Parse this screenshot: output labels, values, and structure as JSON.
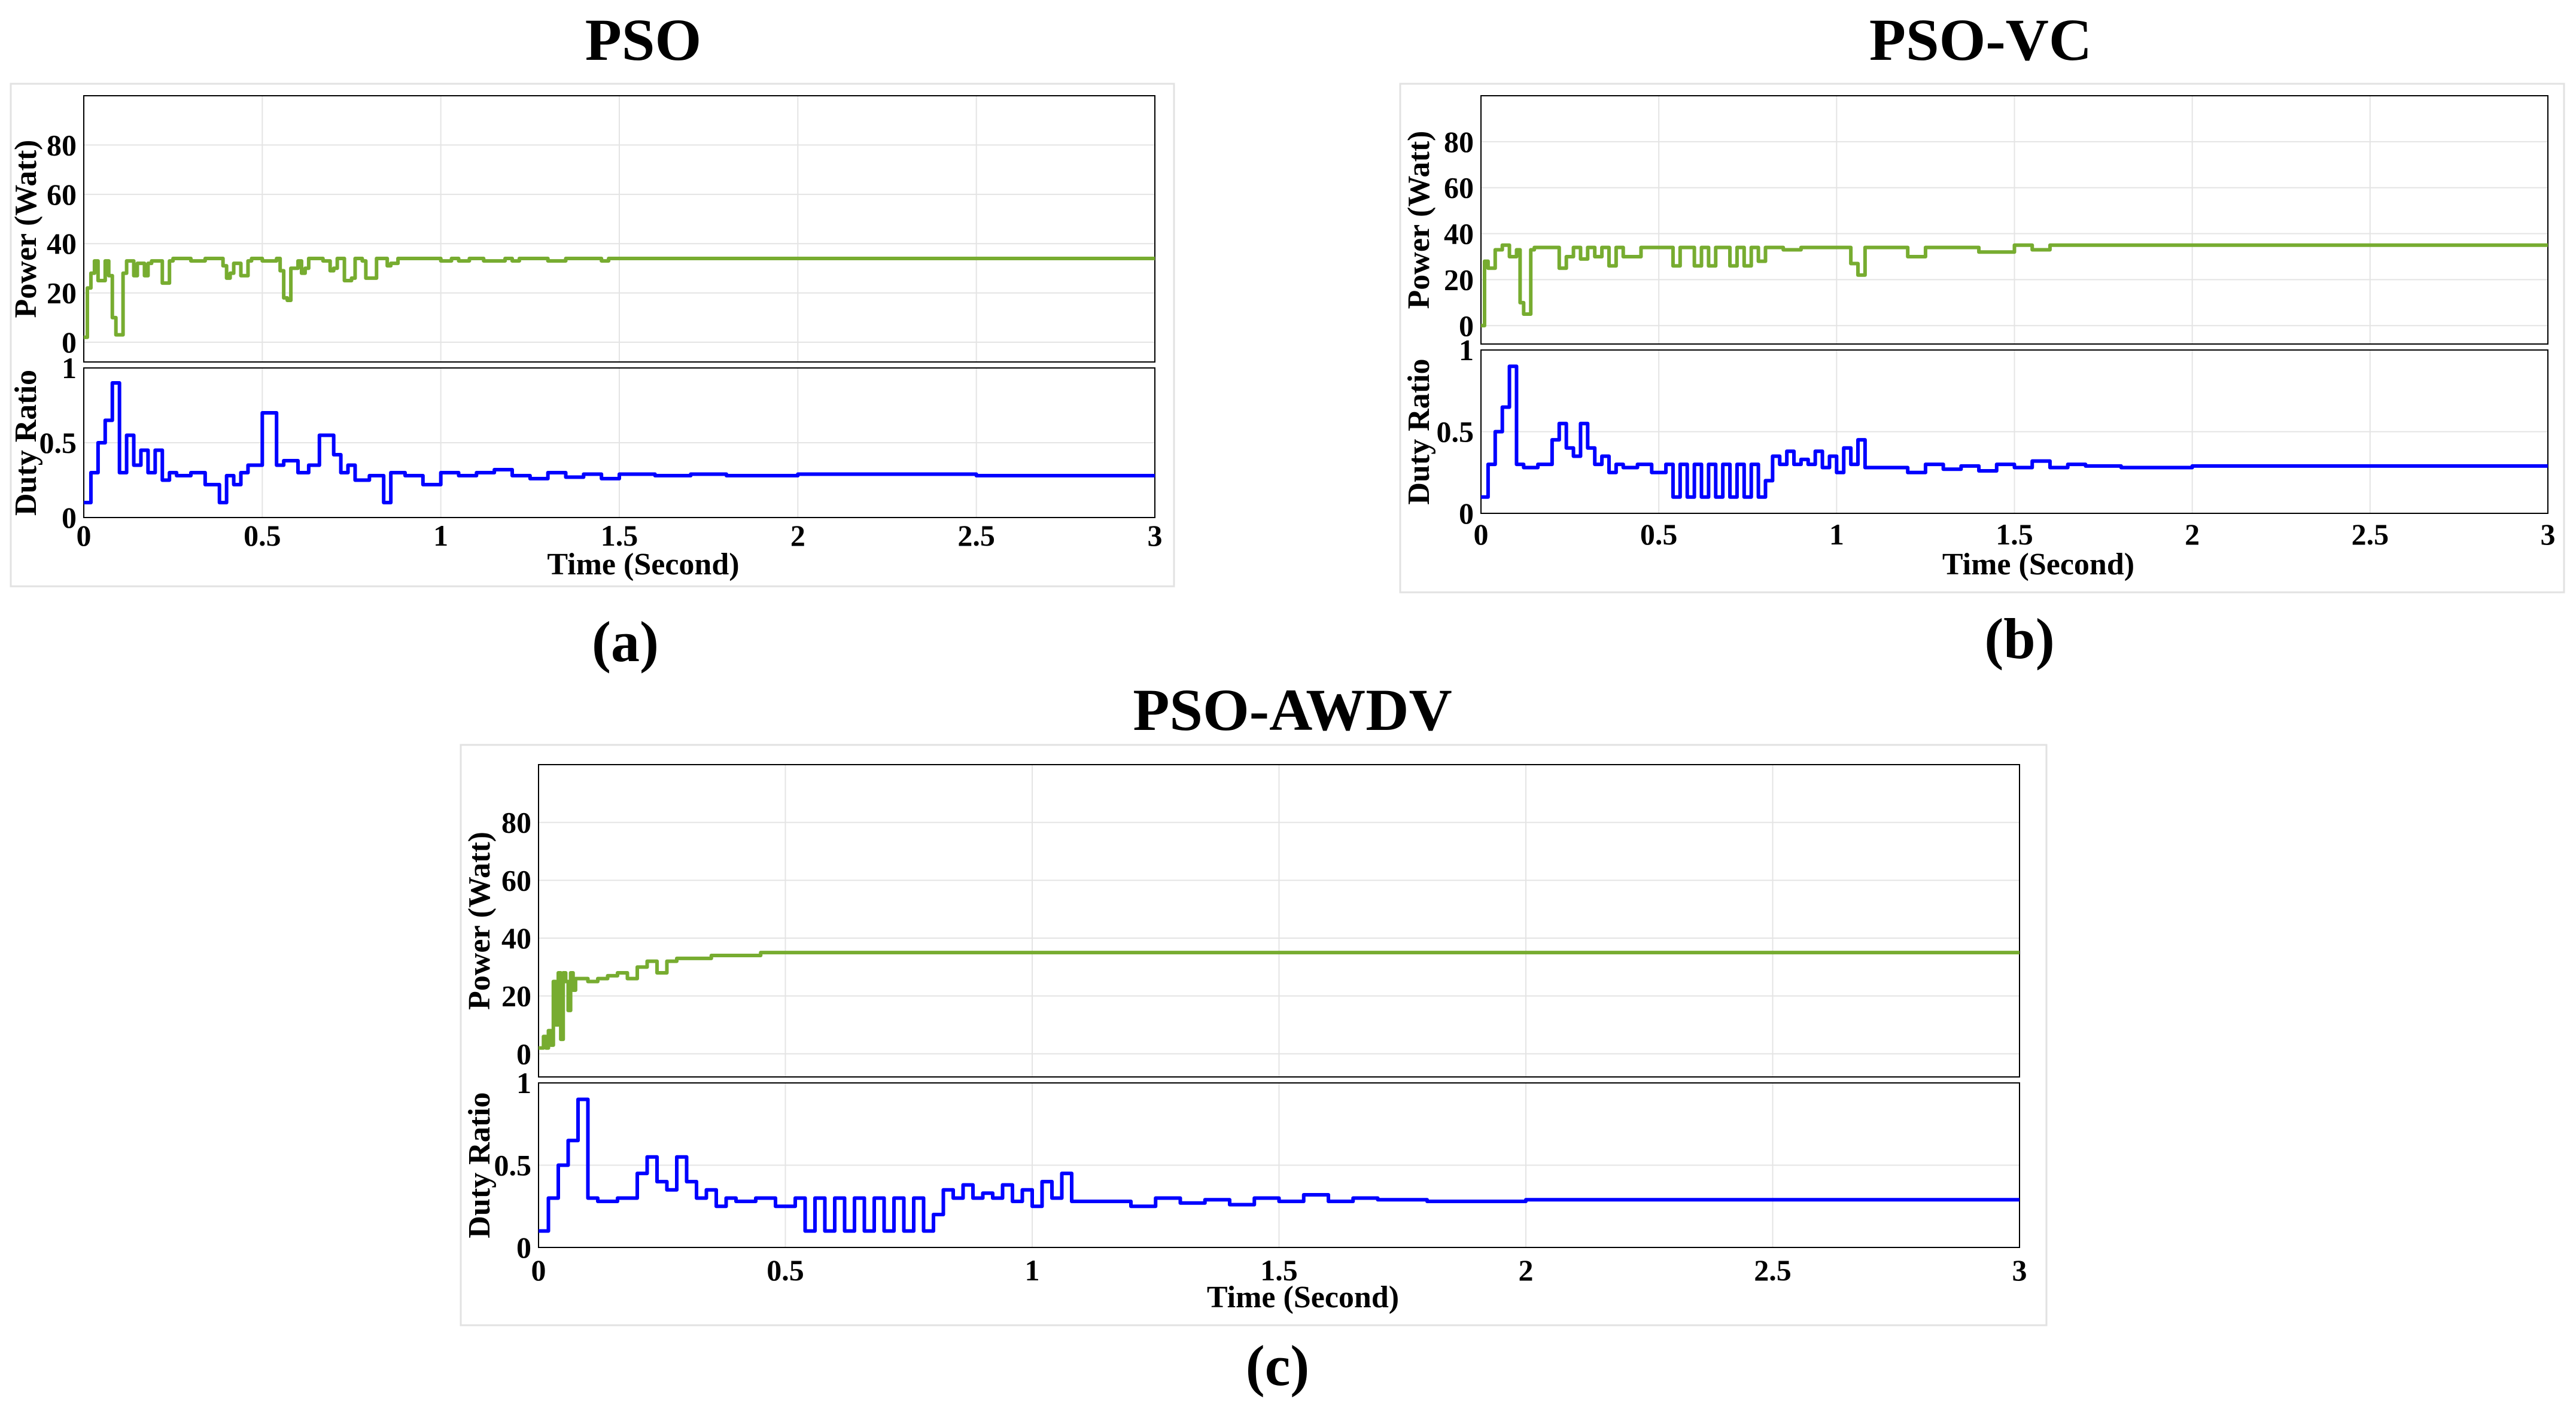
{
  "colors": {
    "power": "#77ac30",
    "duty": "#0000ff",
    "axis": "#000000",
    "grid": "#e4e4e4"
  },
  "captions": {
    "a": "(a)",
    "b": "(b)",
    "c": "(c)"
  },
  "chart_data": [
    {
      "id": "a",
      "title": "PSO",
      "type": "line",
      "xlabel": "Time (Second)",
      "xlim": [
        0,
        3
      ],
      "xticks": [
        "0",
        "0.5",
        "1",
        "1.5",
        "2",
        "2.5",
        "3"
      ],
      "subplots": [
        {
          "name": "power",
          "ylabel": "Power (Watt)",
          "ylim": [
            -8,
            100
          ],
          "yticks": [
            "0",
            "20",
            "40",
            "60",
            "80"
          ],
          "series": [
            {
              "name": "Power",
              "x": [
                0,
                0.01,
                0.02,
                0.03,
                0.04,
                0.06,
                0.07,
                0.08,
                0.09,
                0.1,
                0.11,
                0.12,
                0.13,
                0.14,
                0.15,
                0.16,
                0.17,
                0.18,
                0.19,
                0.21,
                0.22,
                0.23,
                0.24,
                0.25,
                0.27,
                0.3,
                0.34,
                0.37,
                0.39,
                0.4,
                0.41,
                0.42,
                0.44,
                0.46,
                0.47,
                0.48,
                0.5,
                0.54,
                0.55,
                0.56,
                0.57,
                0.58,
                0.6,
                0.61,
                0.62,
                0.63,
                0.65,
                0.67,
                0.69,
                0.7,
                0.71,
                0.72,
                0.73,
                0.75,
                0.76,
                0.77,
                0.78,
                0.79,
                0.8,
                0.82,
                0.84,
                0.85,
                0.86,
                0.88,
                0.95,
                1.0,
                1.03,
                1.05,
                1.08,
                1.12,
                1.18,
                1.2,
                1.22,
                1.3,
                1.35,
                1.45,
                1.47,
                1.5,
                1.6,
                2.0,
                2.5,
                3.0
              ],
              "y": [
                2,
                22,
                28,
                33,
                25,
                33,
                27,
                10,
                3,
                3,
                28,
                33,
                33,
                27,
                32,
                32,
                27,
                32,
                33,
                33,
                24,
                24,
                33,
                34,
                34,
                33,
                34,
                34,
                31,
                26,
                28,
                32,
                27,
                33,
                34,
                34,
                33,
                34,
                29,
                18,
                17,
                30,
                33,
                28,
                30,
                34,
                34,
                33,
                29,
                30,
                34,
                34,
                25,
                26,
                34,
                34,
                33,
                26,
                26,
                34,
                34,
                31,
                32,
                34,
                34,
                33,
                34,
                33,
                34,
                33,
                34,
                33,
                34,
                33,
                34,
                33,
                34,
                34,
                34,
                34,
                34,
                34
              ]
            }
          ]
        },
        {
          "name": "duty",
          "ylabel": "Duty Ratio",
          "ylim": [
            0,
            1
          ],
          "yticks": [
            "0",
            "0.5",
            "1"
          ],
          "series": [
            {
              "name": "Duty Ratio",
              "x": [
                0,
                0.02,
                0.04,
                0.06,
                0.08,
                0.1,
                0.12,
                0.14,
                0.16,
                0.18,
                0.2,
                0.22,
                0.24,
                0.26,
                0.3,
                0.34,
                0.38,
                0.4,
                0.42,
                0.44,
                0.46,
                0.5,
                0.54,
                0.56,
                0.6,
                0.63,
                0.66,
                0.7,
                0.72,
                0.74,
                0.76,
                0.8,
                0.84,
                0.86,
                0.9,
                0.95,
                1.0,
                1.05,
                1.1,
                1.15,
                1.2,
                1.25,
                1.3,
                1.35,
                1.4,
                1.45,
                1.5,
                1.6,
                1.7,
                1.8,
                2.0,
                2.5,
                3.0
              ],
              "y": [
                0.1,
                0.3,
                0.5,
                0.65,
                0.9,
                0.3,
                0.55,
                0.35,
                0.45,
                0.3,
                0.45,
                0.25,
                0.3,
                0.28,
                0.3,
                0.22,
                0.1,
                0.28,
                0.22,
                0.3,
                0.35,
                0.7,
                0.35,
                0.38,
                0.3,
                0.35,
                0.55,
                0.42,
                0.3,
                0.35,
                0.25,
                0.28,
                0.1,
                0.3,
                0.28,
                0.22,
                0.3,
                0.28,
                0.3,
                0.32,
                0.28,
                0.26,
                0.3,
                0.27,
                0.29,
                0.26,
                0.29,
                0.28,
                0.29,
                0.28,
                0.29,
                0.28,
                0.28
              ]
            }
          ]
        }
      ]
    },
    {
      "id": "b",
      "title": "PSO-VC",
      "type": "line",
      "xlabel": "Time (Second)",
      "xlim": [
        0,
        3
      ],
      "xticks": [
        "0",
        "0.5",
        "1",
        "1.5",
        "2",
        "2.5",
        "3"
      ],
      "subplots": [
        {
          "name": "power",
          "ylabel": "Power (Watt)",
          "ylim": [
            -8,
            100
          ],
          "yticks": [
            "0",
            "20",
            "40",
            "60",
            "80"
          ],
          "series": [
            {
              "name": "Power",
              "x": [
                0,
                0.01,
                0.02,
                0.04,
                0.06,
                0.08,
                0.1,
                0.11,
                0.12,
                0.13,
                0.14,
                0.15,
                0.2,
                0.22,
                0.24,
                0.26,
                0.28,
                0.3,
                0.32,
                0.34,
                0.36,
                0.38,
                0.4,
                0.45,
                0.5,
                0.54,
                0.56,
                0.6,
                0.62,
                0.64,
                0.66,
                0.7,
                0.72,
                0.74,
                0.76,
                0.78,
                0.8,
                0.85,
                0.9,
                1.0,
                1.04,
                1.06,
                1.08,
                1.1,
                1.2,
                1.25,
                1.3,
                1.4,
                1.5,
                1.55,
                1.6,
                1.7,
                2.0,
                2.5,
                3.0
              ],
              "y": [
                0,
                28,
                25,
                33,
                35,
                30,
                33,
                10,
                5,
                5,
                33,
                34,
                34,
                25,
                30,
                34,
                29,
                34,
                30,
                34,
                26,
                34,
                30,
                34,
                34,
                26,
                34,
                26,
                34,
                26,
                34,
                26,
                34,
                26,
                34,
                28,
                34,
                33,
                34,
                34,
                27,
                22,
                34,
                34,
                30,
                34,
                34,
                32,
                35,
                33,
                35,
                35,
                35,
                35,
                35
              ]
            }
          ]
        },
        {
          "name": "duty",
          "ylabel": "Duty Ratio",
          "ylim": [
            0,
            1
          ],
          "yticks": [
            "0",
            "0.5",
            "1"
          ],
          "series": [
            {
              "name": "Duty Ratio",
              "x": [
                0,
                0.02,
                0.04,
                0.06,
                0.08,
                0.1,
                0.12,
                0.16,
                0.2,
                0.22,
                0.24,
                0.26,
                0.28,
                0.3,
                0.32,
                0.34,
                0.36,
                0.38,
                0.4,
                0.44,
                0.48,
                0.52,
                0.54,
                0.56,
                0.58,
                0.6,
                0.62,
                0.64,
                0.66,
                0.68,
                0.7,
                0.72,
                0.74,
                0.76,
                0.78,
                0.8,
                0.82,
                0.84,
                0.86,
                0.88,
                0.9,
                0.92,
                0.94,
                0.96,
                0.98,
                1.0,
                1.02,
                1.04,
                1.06,
                1.08,
                1.1,
                1.2,
                1.25,
                1.3,
                1.35,
                1.4,
                1.45,
                1.5,
                1.55,
                1.6,
                1.65,
                1.7,
                1.8,
                2.0,
                2.5,
                3.0
              ],
              "y": [
                0.1,
                0.3,
                0.5,
                0.65,
                0.9,
                0.3,
                0.28,
                0.3,
                0.45,
                0.55,
                0.4,
                0.35,
                0.55,
                0.4,
                0.3,
                0.35,
                0.25,
                0.3,
                0.28,
                0.3,
                0.25,
                0.3,
                0.1,
                0.3,
                0.1,
                0.3,
                0.1,
                0.3,
                0.1,
                0.3,
                0.1,
                0.3,
                0.1,
                0.3,
                0.1,
                0.2,
                0.35,
                0.3,
                0.38,
                0.3,
                0.33,
                0.3,
                0.38,
                0.28,
                0.35,
                0.25,
                0.4,
                0.3,
                0.45,
                0.28,
                0.28,
                0.25,
                0.3,
                0.27,
                0.29,
                0.26,
                0.3,
                0.28,
                0.32,
                0.28,
                0.3,
                0.29,
                0.28,
                0.29,
                0.29,
                0.29
              ]
            }
          ]
        }
      ]
    },
    {
      "id": "c",
      "title": "PSO-AWDV",
      "type": "line",
      "xlabel": "Time (Second)",
      "xlim": [
        0,
        3
      ],
      "xticks": [
        "0",
        "0.5",
        "1",
        "1.5",
        "2",
        "2.5",
        "3"
      ],
      "subplots": [
        {
          "name": "power",
          "ylabel": "Power (Watt)",
          "ylim": [
            -8,
            100
          ],
          "yticks": [
            "0",
            "20",
            "40",
            "60",
            "80"
          ],
          "series": [
            {
              "name": "Power",
              "x": [
                0,
                0.01,
                0.015,
                0.02,
                0.025,
                0.03,
                0.035,
                0.04,
                0.045,
                0.05,
                0.055,
                0.06,
                0.065,
                0.07,
                0.075,
                0.08,
                0.1,
                0.12,
                0.14,
                0.16,
                0.18,
                0.2,
                0.22,
                0.24,
                0.26,
                0.28,
                0.3,
                0.35,
                0.4,
                0.45,
                0.5,
                1.0,
                1.5,
                2.0,
                2.5,
                3.0
              ],
              "y": [
                2,
                6,
                2,
                8,
                3,
                25,
                10,
                28,
                5,
                28,
                25,
                15,
                28,
                22,
                26,
                26,
                25,
                26,
                27,
                28,
                26,
                30,
                32,
                28,
                32,
                33,
                33,
                34,
                34,
                35,
                35,
                35,
                35,
                35,
                35,
                35
              ]
            }
          ]
        },
        {
          "name": "duty",
          "ylabel": "Duty Ratio",
          "ylim": [
            0,
            1
          ],
          "yticks": [
            "0",
            "0.5",
            "1"
          ],
          "series": [
            {
              "name": "Duty Ratio",
              "x": [
                0,
                0.02,
                0.04,
                0.06,
                0.08,
                0.1,
                0.12,
                0.16,
                0.2,
                0.22,
                0.24,
                0.26,
                0.28,
                0.3,
                0.32,
                0.34,
                0.36,
                0.38,
                0.4,
                0.44,
                0.48,
                0.52,
                0.54,
                0.56,
                0.58,
                0.6,
                0.62,
                0.64,
                0.66,
                0.68,
                0.7,
                0.72,
                0.74,
                0.76,
                0.78,
                0.8,
                0.82,
                0.84,
                0.86,
                0.88,
                0.9,
                0.92,
                0.94,
                0.96,
                0.98,
                1.0,
                1.02,
                1.04,
                1.06,
                1.08,
                1.1,
                1.2,
                1.25,
                1.3,
                1.35,
                1.4,
                1.45,
                1.5,
                1.55,
                1.6,
                1.65,
                1.7,
                1.8,
                2.0,
                2.5,
                3.0
              ],
              "y": [
                0.1,
                0.3,
                0.5,
                0.65,
                0.9,
                0.3,
                0.28,
                0.3,
                0.45,
                0.55,
                0.4,
                0.35,
                0.55,
                0.4,
                0.3,
                0.35,
                0.25,
                0.3,
                0.28,
                0.3,
                0.25,
                0.3,
                0.1,
                0.3,
                0.1,
                0.3,
                0.1,
                0.3,
                0.1,
                0.3,
                0.1,
                0.3,
                0.1,
                0.3,
                0.1,
                0.2,
                0.35,
                0.3,
                0.38,
                0.3,
                0.33,
                0.3,
                0.38,
                0.28,
                0.35,
                0.25,
                0.4,
                0.3,
                0.45,
                0.28,
                0.28,
                0.25,
                0.3,
                0.27,
                0.29,
                0.26,
                0.3,
                0.28,
                0.32,
                0.28,
                0.3,
                0.29,
                0.28,
                0.29,
                0.29,
                0.29
              ]
            }
          ]
        }
      ]
    }
  ]
}
